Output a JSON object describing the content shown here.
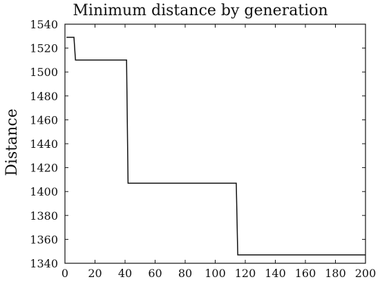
{
  "chart_data": {
    "type": "line",
    "title": "Minimum distance by generation",
    "xlabel": "",
    "ylabel": "Distance",
    "xlim": [
      0,
      200
    ],
    "ylim": [
      1340,
      1540
    ],
    "x_ticks": [
      0,
      20,
      40,
      60,
      80,
      100,
      120,
      140,
      160,
      180,
      200
    ],
    "y_ticks": [
      1340,
      1360,
      1380,
      1400,
      1420,
      1440,
      1460,
      1480,
      1500,
      1520,
      1540
    ],
    "x_tick_labels": [
      "0",
      "20",
      "40",
      "60",
      "80",
      "100",
      "120",
      "140",
      "160",
      "180",
      "200"
    ],
    "y_tick_labels": [
      "1340",
      "1360",
      "1380",
      "1400",
      "1420",
      "1440",
      "1460",
      "1480",
      "1500",
      "1520",
      "1540"
    ],
    "grid": false,
    "series": [
      {
        "color": "#111111",
        "step": "post",
        "points": [
          {
            "x": 1,
            "y": 1529
          },
          {
            "x": 6,
            "y": 1529
          },
          {
            "x": 7,
            "y": 1510
          },
          {
            "x": 41,
            "y": 1510
          },
          {
            "x": 42,
            "y": 1407
          },
          {
            "x": 114,
            "y": 1407
          },
          {
            "x": 115,
            "y": 1347
          },
          {
            "x": 200,
            "y": 1347
          }
        ]
      }
    ]
  }
}
